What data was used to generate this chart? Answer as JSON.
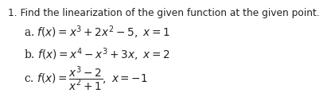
{
  "title": "1. Find the linearization of the given function at the given point.",
  "line_a": "a. $f(x) = x^3 + 2x^2 - 5,\\ x = 1$",
  "line_b": "b. $f(x) = x^4 - x^3 + 3x,\\ x = 2$",
  "line_c": "c. $f(x) = \\dfrac{x^3 - 2}{x^2 + 1},\\ x = -1$",
  "bg_color": "#ffffff",
  "text_color": "#222222",
  "font_size_title": 8.8,
  "font_size_body": 9.8
}
